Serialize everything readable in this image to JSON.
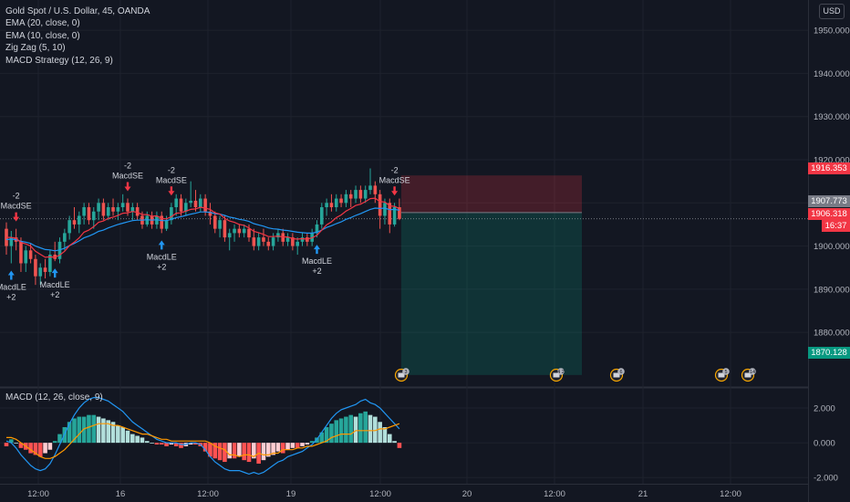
{
  "header": {
    "symbol_title": "Gold Spot / U.S. Dollar, 45, OANDA",
    "indicators": [
      "EMA (20, close, 0)",
      "EMA (10, close, 0)",
      "Zig Zag (5, 10)",
      "MACD Strategy (12, 26, 9)"
    ],
    "currency_button": "USD"
  },
  "price_tags": {
    "stop": "1916.353",
    "current": "1907.773",
    "last": "1906.318",
    "countdown": "16:37",
    "target": "1870.128"
  },
  "colors": {
    "background": "#131722",
    "bull": "#26a69a",
    "bear": "#ef5350",
    "ema20": "#2196f3",
    "ema10": "#f23645",
    "signal_long": "#2196f3",
    "signal_short": "#f23645",
    "macd_line": "#2196f3",
    "signal_line": "#ff9800"
  },
  "macd_panel": {
    "title": "MACD (12, 26, close, 9)"
  },
  "chart_data": [
    {
      "type": "candlestick",
      "title": "Gold Spot / U.S. Dollar, 45, OANDA",
      "x_tick_labels": [
        "12:00",
        "16",
        "12:00",
        "19",
        "12:00",
        "20",
        "12:00",
        "21",
        "12:00"
      ],
      "y_tick_labels": [
        "1950.000",
        "1940.000",
        "1930.000",
        "1920.000",
        "1910.000",
        "1900.000",
        "1890.000",
        "1880.000"
      ],
      "ylim": [
        1872,
        1957
      ],
      "ohlc": [
        [
          1904.0,
          1905.5,
          1898.0,
          1900.0
        ],
        [
          1900.0,
          1903.5,
          1896.0,
          1902.0
        ],
        [
          1902.0,
          1904.0,
          1899.0,
          1901.0
        ],
        [
          1901.0,
          1902.0,
          1894.0,
          1896.0
        ],
        [
          1896.0,
          1900.0,
          1894.0,
          1899.0
        ],
        [
          1899.0,
          1900.5,
          1896.0,
          1897.0
        ],
        [
          1897.0,
          1898.0,
          1891.0,
          1893.0
        ],
        [
          1893.0,
          1896.0,
          1891.0,
          1895.0
        ],
        [
          1895.0,
          1897.0,
          1892.5,
          1894.0
        ],
        [
          1894.0,
          1899.0,
          1893.0,
          1898.0
        ],
        [
          1898.0,
          1901.0,
          1896.5,
          1897.0
        ],
        [
          1897.0,
          1902.0,
          1896.0,
          1901.0
        ],
        [
          1901.0,
          1904.0,
          1899.0,
          1903.0
        ],
        [
          1903.0,
          1907.0,
          1901.5,
          1906.0
        ],
        [
          1906.0,
          1909.0,
          1904.0,
          1905.0
        ],
        [
          1905.0,
          1908.0,
          1903.0,
          1907.0
        ],
        [
          1907.0,
          1910.0,
          1905.0,
          1909.0
        ],
        [
          1909.0,
          1910.0,
          1905.0,
          1906.0
        ],
        [
          1906.0,
          1909.0,
          1904.0,
          1908.0
        ],
        [
          1908.0,
          1911.0,
          1906.0,
          1910.0
        ],
        [
          1910.0,
          1911.0,
          1906.0,
          1907.0
        ],
        [
          1907.0,
          1910.0,
          1906.0,
          1909.0
        ],
        [
          1909.0,
          1911.0,
          1907.0,
          1908.0
        ],
        [
          1908.0,
          1910.0,
          1906.0,
          1909.0
        ],
        [
          1909.0,
          1912.0,
          1908.0,
          1910.0
        ],
        [
          1910.0,
          1911.0,
          1907.0,
          1908.0
        ],
        [
          1908.0,
          1910.0,
          1906.0,
          1909.0
        ],
        [
          1909.0,
          1910.0,
          1906.0,
          1907.0
        ],
        [
          1907.0,
          1908.0,
          1904.0,
          1905.0
        ],
        [
          1905.0,
          1908.0,
          1904.5,
          1907.0
        ],
        [
          1907.0,
          1908.0,
          1904.0,
          1905.0
        ],
        [
          1905.0,
          1908.0,
          1904.0,
          1907.0
        ],
        [
          1907.0,
          1908.0,
          1903.0,
          1904.0
        ],
        [
          1904.0,
          1907.0,
          1903.5,
          1906.0
        ],
        [
          1906.0,
          1910.0,
          1905.0,
          1909.0
        ],
        [
          1909.0,
          1912.0,
          1907.0,
          1911.0
        ],
        [
          1911.0,
          1912.0,
          1907.0,
          1908.0
        ],
        [
          1908.0,
          1911.0,
          1907.0,
          1910.0
        ],
        [
          1910.0,
          1915.0,
          1909.0,
          1910.5
        ],
        [
          1910.5,
          1913.0,
          1908.0,
          1909.0
        ],
        [
          1909.0,
          1912.0,
          1908.0,
          1911.0
        ],
        [
          1911.0,
          1912.0,
          1907.0,
          1908.0
        ],
        [
          1908.0,
          1910.0,
          1905.0,
          1907.0
        ],
        [
          1907.0,
          1908.0,
          1903.0,
          1904.0
        ],
        [
          1904.0,
          1907.0,
          1902.0,
          1906.0
        ],
        [
          1906.0,
          1907.0,
          1901.0,
          1902.0
        ],
        [
          1902.0,
          1904.0,
          1899.0,
          1903.0
        ],
        [
          1903.0,
          1905.0,
          1901.0,
          1904.0
        ],
        [
          1904.0,
          1905.0,
          1902.0,
          1903.0
        ],
        [
          1903.0,
          1905.0,
          1902.0,
          1904.0
        ],
        [
          1904.0,
          1905.0,
          1901.0,
          1902.0
        ],
        [
          1902.0,
          1904.0,
          1899.0,
          1900.0
        ],
        [
          1900.0,
          1903.0,
          1899.0,
          1902.0
        ],
        [
          1902.0,
          1904.0,
          1900.0,
          1901.0
        ],
        [
          1901.0,
          1902.0,
          1899.0,
          1900.0
        ],
        [
          1900.0,
          1903.0,
          1899.0,
          1902.0
        ],
        [
          1902.0,
          1904.0,
          1901.0,
          1903.0
        ],
        [
          1903.0,
          1904.0,
          1900.0,
          1901.0
        ],
        [
          1901.0,
          1903.0,
          1900.0,
          1902.0
        ],
        [
          1902.0,
          1903.0,
          1899.0,
          1900.0
        ],
        [
          1900.0,
          1902.0,
          1898.0,
          1901.0
        ],
        [
          1901.0,
          1903.0,
          1900.0,
          1902.0
        ],
        [
          1902.0,
          1903.0,
          1900.0,
          1901.0
        ],
        [
          1901.0,
          1904.0,
          1900.0,
          1903.0
        ],
        [
          1903.0,
          1906.0,
          1902.0,
          1905.0
        ],
        [
          1905.0,
          1910.0,
          1904.0,
          1909.0
        ],
        [
          1909.0,
          1911.0,
          1907.0,
          1910.0
        ],
        [
          1910.0,
          1912.0,
          1908.0,
          1909.0
        ],
        [
          1909.0,
          1912.0,
          1908.0,
          1911.0
        ],
        [
          1911.0,
          1912.0,
          1909.0,
          1910.0
        ],
        [
          1910.0,
          1913.0,
          1909.0,
          1912.0
        ],
        [
          1912.0,
          1913.0,
          1909.0,
          1911.0
        ],
        [
          1911.0,
          1914.0,
          1910.0,
          1913.0
        ],
        [
          1913.0,
          1914.0,
          1910.0,
          1911.0
        ],
        [
          1911.0,
          1914.0,
          1910.0,
          1913.0
        ],
        [
          1913.0,
          1918.0,
          1912.0,
          1914.0
        ],
        [
          1914.0,
          1915.0,
          1910.0,
          1912.0
        ],
        [
          1912.0,
          1913.0,
          1904.0,
          1907.0
        ],
        [
          1907.0,
          1911.0,
          1905.0,
          1910.0
        ],
        [
          1910.0,
          1911.0,
          1903.0,
          1905.0
        ],
        [
          1905.0,
          1910.0,
          1904.5,
          1909.0
        ],
        [
          1909.0,
          1911.0,
          1906.0,
          1906.3
        ]
      ],
      "series": [
        {
          "name": "EMA (20, close, 0)",
          "values": [
            1901.5,
            1901.6,
            1901.5,
            1901.1,
            1900.9,
            1900.6,
            1900.0,
            1899.6,
            1899.2,
            1899.1,
            1898.9,
            1899.1,
            1899.5,
            1900.1,
            1900.6,
            1901.2,
            1901.9,
            1902.3,
            1902.8,
            1903.4,
            1903.7,
            1904.2,
            1904.6,
            1905.0,
            1905.3,
            1905.6,
            1905.9,
            1906.0,
            1906.0,
            1906.1,
            1906.0,
            1906.1,
            1905.9,
            1905.9,
            1906.2,
            1906.6,
            1906.8,
            1907.1,
            1907.4,
            1907.6,
            1907.9,
            1907.9,
            1907.8,
            1907.5,
            1907.4,
            1907.1,
            1906.7,
            1906.5,
            1906.2,
            1906.0,
            1905.7,
            1905.2,
            1904.9,
            1904.6,
            1904.2,
            1904.0,
            1903.9,
            1903.7,
            1903.6,
            1903.4,
            1903.2,
            1903.1,
            1903.0,
            1903.0,
            1903.2,
            1903.7,
            1904.3,
            1904.7,
            1905.2,
            1905.6,
            1906.2,
            1906.6,
            1907.1,
            1907.5,
            1908.0,
            1908.5,
            1908.8,
            1908.7,
            1908.8,
            1908.4,
            1908.5,
            1908.3
          ]
        },
        {
          "name": "EMA (10, close, 0)",
          "values": [
            1902.0,
            1902.0,
            1901.8,
            1900.8,
            1900.5,
            1900.0,
            1898.8,
            1898.1,
            1897.4,
            1897.5,
            1897.4,
            1897.9,
            1898.8,
            1900.1,
            1900.9,
            1901.9,
            1903.2,
            1903.7,
            1904.5,
            1905.5,
            1905.8,
            1906.4,
            1906.7,
            1907.1,
            1907.6,
            1907.7,
            1908.0,
            1907.8,
            1907.3,
            1907.3,
            1906.9,
            1907.0,
            1906.4,
            1906.3,
            1906.8,
            1907.6,
            1907.7,
            1908.1,
            1908.5,
            1908.6,
            1909.0,
            1908.8,
            1908.5,
            1907.7,
            1907.4,
            1906.4,
            1905.8,
            1905.5,
            1905.0,
            1904.8,
            1904.2,
            1903.4,
            1903.1,
            1902.7,
            1902.2,
            1902.2,
            1902.3,
            1902.1,
            1902.1,
            1901.7,
            1901.6,
            1901.7,
            1901.6,
            1901.9,
            1902.5,
            1903.7,
            1904.9,
            1905.6,
            1906.6,
            1907.2,
            1908.1,
            1908.7,
            1909.4,
            1909.7,
            1910.3,
            1911.0,
            1911.1,
            1910.3,
            1910.2,
            1909.3,
            1909.2,
            1908.7
          ]
        }
      ],
      "signals": [
        {
          "type": "long",
          "label": "MacdLE",
          "qty": "+2",
          "bar": 1
        },
        {
          "type": "short",
          "label": "MacdSE",
          "qty": "-2",
          "bar": 2
        },
        {
          "type": "long",
          "label": "MacdLE",
          "qty": "+2",
          "bar": 10
        },
        {
          "type": "short",
          "label": "MacdSE",
          "qty": "-2",
          "bar": 25
        },
        {
          "type": "long",
          "label": "MacdLE",
          "qty": "+2",
          "bar": 32
        },
        {
          "type": "short",
          "label": "MacdSE",
          "qty": "-2",
          "bar": 34
        },
        {
          "type": "long",
          "label": "MacdLE",
          "qty": "+2",
          "bar": 64
        },
        {
          "type": "short",
          "label": "MacdSE",
          "qty": "-2",
          "bar": 80
        }
      ],
      "short_position": {
        "entry": 1907.773,
        "stop": 1916.353,
        "target": 1870.128
      }
    },
    {
      "type": "bar",
      "title": "MACD (12, 26, close, 9)",
      "y_tick_labels": [
        "2.000",
        "0.000",
        "-2.000"
      ],
      "ylim": [
        -2.2,
        3.0
      ],
      "histogram": [
        -0.2,
        0.2,
        0.0,
        -0.3,
        -0.4,
        -0.6,
        -0.7,
        -0.8,
        -0.6,
        -0.4,
        0.1,
        0.5,
        0.9,
        1.2,
        1.4,
        1.5,
        1.5,
        1.6,
        1.6,
        1.5,
        1.4,
        1.3,
        1.2,
        1.0,
        0.9,
        0.7,
        0.5,
        0.4,
        0.3,
        0.1,
        0.0,
        -0.1,
        -0.1,
        -0.2,
        -0.1,
        -0.2,
        -0.3,
        -0.2,
        -0.1,
        -0.1,
        -0.2,
        -0.5,
        -0.8,
        -0.9,
        -1.0,
        -1.1,
        -0.9,
        -0.9,
        -0.8,
        -1.0,
        -1.1,
        -0.9,
        -1.2,
        -1.0,
        -0.8,
        -0.7,
        -0.5,
        -0.6,
        -0.4,
        -0.3,
        -0.3,
        -0.2,
        -0.1,
        0.1,
        0.3,
        0.6,
        0.9,
        1.1,
        1.3,
        1.4,
        1.5,
        1.6,
        1.5,
        1.7,
        1.8,
        1.6,
        1.5,
        1.2,
        0.9,
        0.5,
        0.1,
        -0.3
      ],
      "series": [
        {
          "name": "MACD",
          "values": [
            0.1,
            0.0,
            -0.3,
            -0.7,
            -1.0,
            -1.3,
            -1.5,
            -1.6,
            -1.5,
            -1.2,
            -0.7,
            -0.1,
            0.5,
            1.1,
            1.6,
            2.0,
            2.3,
            2.5,
            2.6,
            2.6,
            2.5,
            2.4,
            2.2,
            2.0,
            1.8,
            1.5,
            1.2,
            1.0,
            0.8,
            0.6,
            0.4,
            0.2,
            0.1,
            0.0,
            0.0,
            0.0,
            -0.1,
            -0.1,
            0.0,
            0.0,
            -0.1,
            -0.4,
            -0.8,
            -1.1,
            -1.3,
            -1.5,
            -1.6,
            -1.6,
            -1.6,
            -1.7,
            -1.8,
            -1.7,
            -1.8,
            -1.7,
            -1.5,
            -1.3,
            -1.1,
            -1.0,
            -0.8,
            -0.7,
            -0.6,
            -0.5,
            -0.3,
            -0.1,
            0.2,
            0.6,
            1.0,
            1.4,
            1.7,
            1.9,
            2.0,
            2.1,
            2.2,
            2.4,
            2.5,
            2.3,
            2.2,
            2.0,
            1.7,
            1.4,
            1.1,
            0.8
          ]
        },
        {
          "name": "Signal",
          "values": [
            0.3,
            0.3,
            0.2,
            0.0,
            -0.2,
            -0.4,
            -0.6,
            -0.8,
            -0.9,
            -0.9,
            -0.8,
            -0.6,
            -0.4,
            -0.1,
            0.2,
            0.5,
            0.8,
            0.9,
            1.0,
            1.1,
            1.1,
            1.1,
            1.0,
            1.0,
            0.9,
            0.8,
            0.7,
            0.6,
            0.5,
            0.5,
            0.4,
            0.3,
            0.2,
            0.2,
            0.1,
            0.1,
            0.1,
            0.1,
            0.1,
            0.1,
            0.1,
            0.1,
            0.0,
            -0.2,
            -0.3,
            -0.4,
            -0.7,
            -0.7,
            -0.8,
            -0.7,
            -0.7,
            -0.8,
            -0.6,
            -0.7,
            -0.7,
            -0.6,
            -0.6,
            -0.4,
            -0.4,
            -0.4,
            -0.3,
            -0.3,
            -0.2,
            -0.2,
            -0.1,
            0.0,
            0.1,
            0.3,
            0.4,
            0.5,
            0.5,
            0.5,
            0.7,
            0.7,
            0.7,
            0.7,
            0.7,
            0.8,
            0.8,
            0.9,
            1.0,
            1.1
          ]
        }
      ]
    }
  ],
  "events": [
    {
      "label": "3"
    },
    {
      "label": "4 2"
    },
    {
      "label": "6"
    },
    {
      "label": "5"
    },
    {
      "label": "14"
    }
  ]
}
